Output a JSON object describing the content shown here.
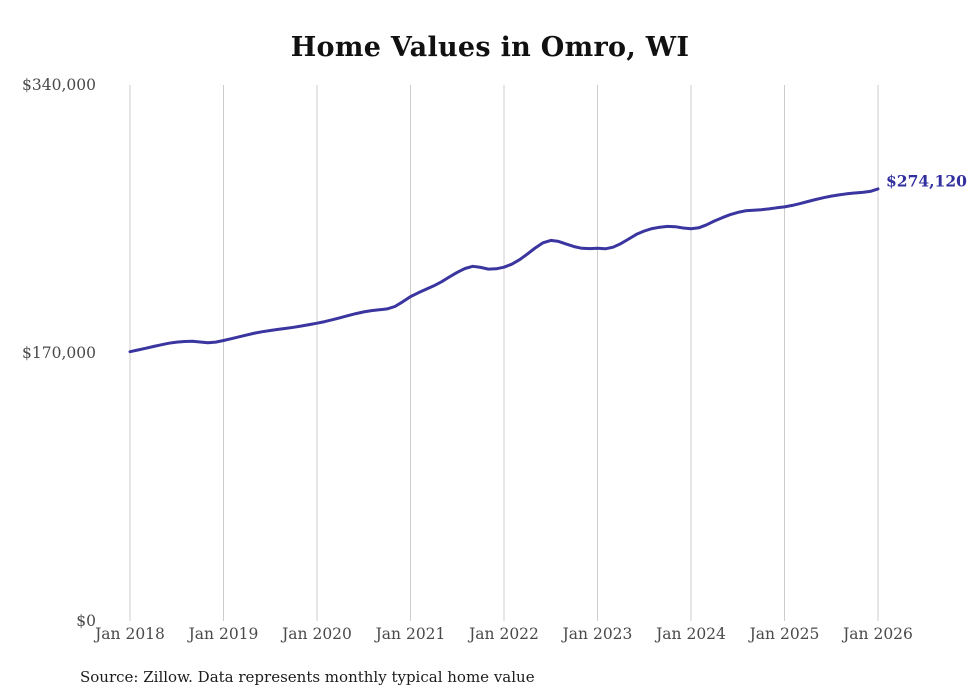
{
  "title": "Home Values in Omro, WI",
  "source_note": "Source: Zillow. Data represents monthly typical home value",
  "annotation": {
    "end_value_label": "$274,120"
  },
  "colors": {
    "line": "#3b35a0",
    "annotation": "#322f9e",
    "grid": "#cccccc",
    "tick_text": "#4a4a4a",
    "title_text": "#111111"
  },
  "chart_data": {
    "type": "line",
    "title": "Home Values in Omro, WI",
    "xlabel": "",
    "ylabel": "",
    "ylim": [
      0,
      340000
    ],
    "grid": "vertical-only",
    "legend": "none",
    "x_tick_labels": [
      "Jan 2018",
      "Jan 2019",
      "Jan 2020",
      "Jan 2021",
      "Jan 2022",
      "Jan 2023",
      "Jan 2024",
      "Jan 2025",
      "Jan 2026"
    ],
    "y_tick_labels": [
      "$0",
      "$170,000",
      "$340,000"
    ],
    "y_tick_values": [
      0,
      170000,
      340000
    ],
    "x_start_month": "2018-01",
    "x_end_month": "2026-01",
    "cadence": "monthly",
    "unit": "USD",
    "end_value": 274120,
    "series": [
      {
        "name": "Typical home value",
        "monthly_values": [
          170800,
          171900,
          173000,
          174100,
          175200,
          176200,
          176900,
          177300,
          177400,
          177000,
          176500,
          176900,
          177900,
          179100,
          180300,
          181500,
          182600,
          183500,
          184300,
          185000,
          185600,
          186300,
          187100,
          188000,
          188900,
          189900,
          191100,
          192400,
          193700,
          195000,
          196100,
          196900,
          197400,
          198000,
          199500,
          202500,
          205800,
          208200,
          210400,
          212600,
          215200,
          218300,
          221200,
          223600,
          225000,
          224300,
          223200,
          223400,
          224400,
          226300,
          229200,
          232800,
          236600,
          239900,
          241400,
          240800,
          239100,
          237500,
          236400,
          236200,
          236500,
          236100,
          237100,
          239400,
          242300,
          245300,
          247400,
          248900,
          249800,
          250300,
          250100,
          249300,
          248800,
          249400,
          251300,
          253700,
          255800,
          257700,
          259200,
          260200,
          260600,
          260900,
          261400,
          262100,
          262700,
          263600,
          264800,
          266100,
          267400,
          268500,
          269500,
          270300,
          271000,
          271500,
          271900,
          272500,
          274120
        ]
      }
    ]
  }
}
